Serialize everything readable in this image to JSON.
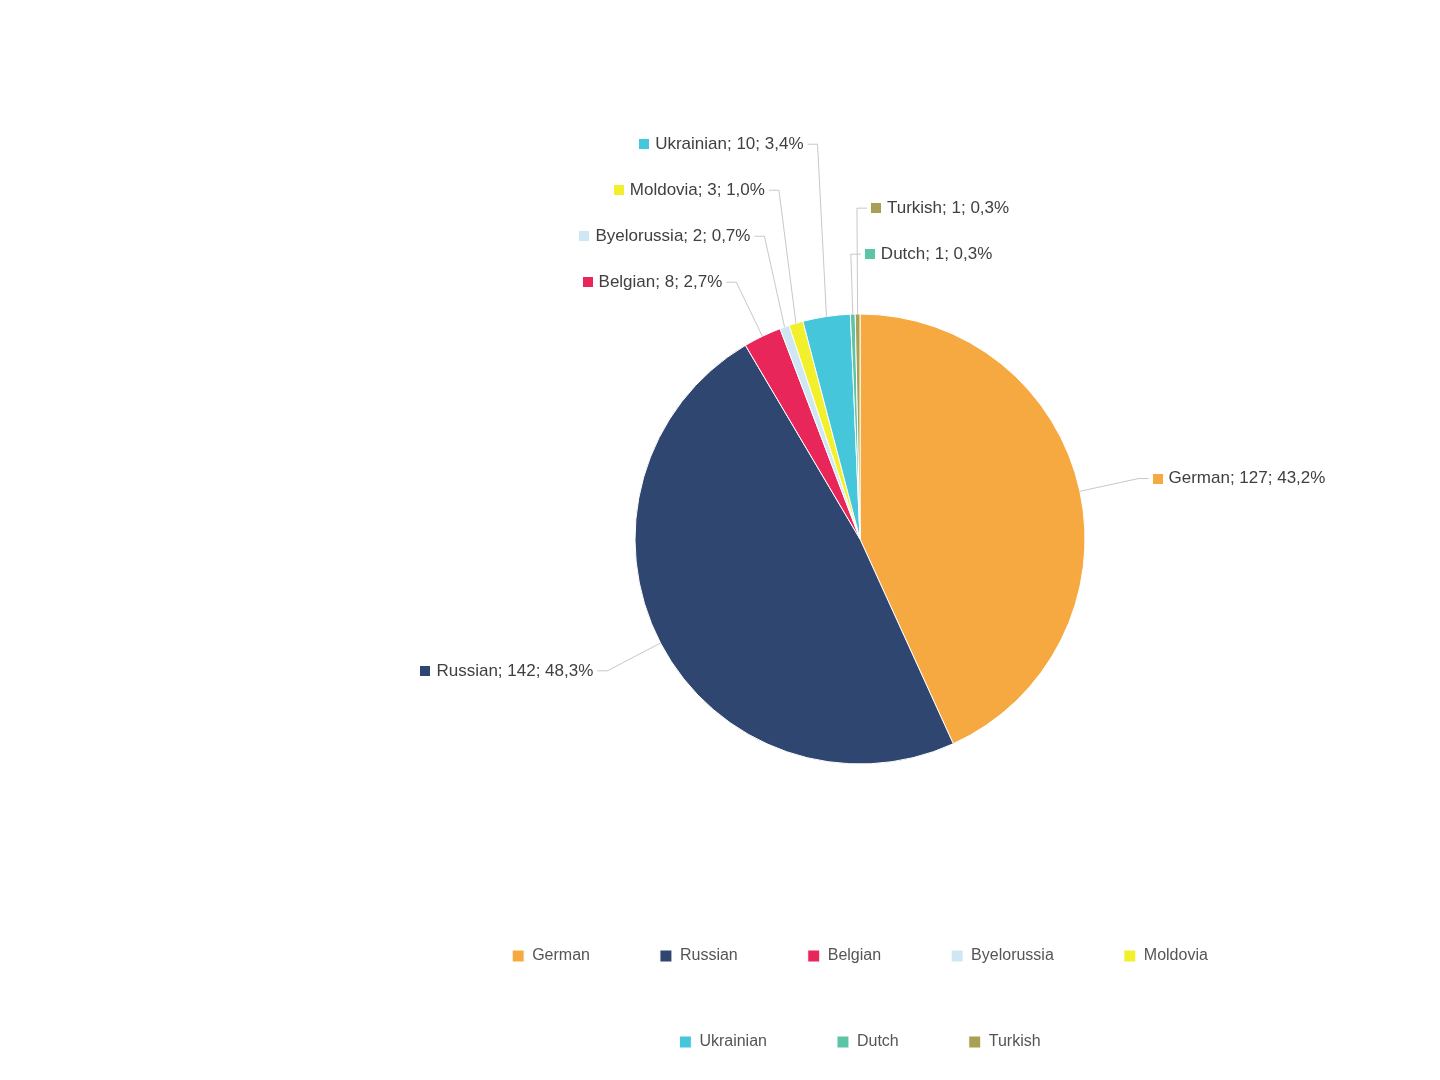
{
  "chart_data": {
    "type": "pie",
    "categories": [
      "German",
      "Russian",
      "Belgian",
      "Byelorussia",
      "Moldovia",
      "Ukrainian",
      "Dutch",
      "Turkish"
    ],
    "values": [
      127,
      142,
      8,
      2,
      3,
      10,
      1,
      1
    ],
    "colors": [
      "#f7a941",
      "#2f4670",
      "#e8265a",
      "#cfe6f3",
      "#f2ef2c",
      "#46c6da",
      "#5cc5a5",
      "#a99f55"
    ],
    "value_labels": [
      "German; 127; 43,2%",
      "Russian; 142; 48,3%",
      "Belgian; 8; 2,7%",
      "Byelorussia; 2; 0,7%",
      "Moldovia; 3; 1,0%",
      "Ukrainian; 10; 3,4%",
      "Dutch; 1; 0,3%",
      "Turkish; 1; 0,3%"
    ],
    "legend": "bottom"
  }
}
